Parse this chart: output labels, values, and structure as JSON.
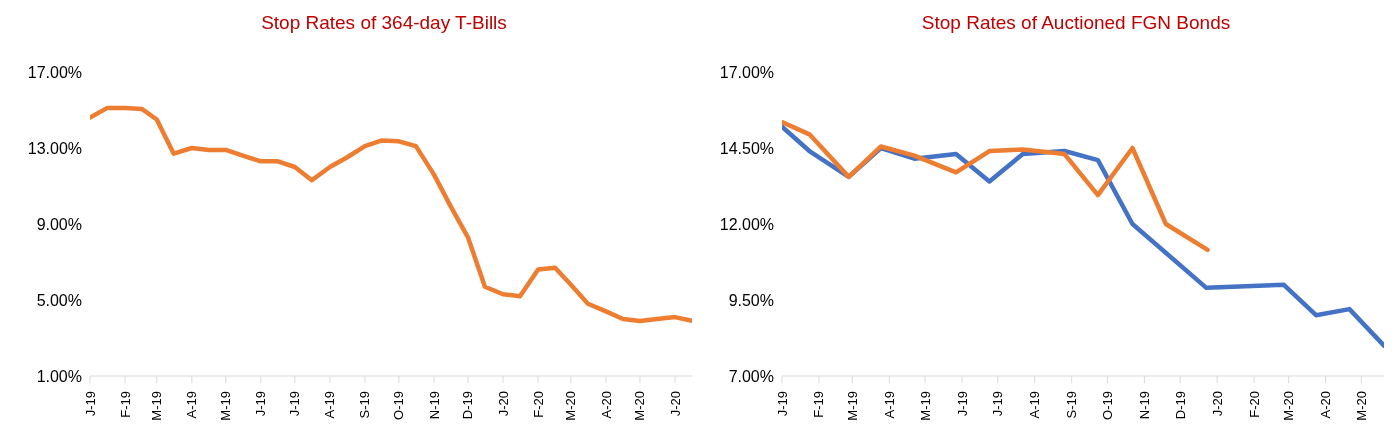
{
  "chart_data": [
    {
      "type": "line",
      "title": "Stop Rates of 364-day T-Bills",
      "color": "#ed7d31",
      "x": [
        "2019-01-01",
        "2019-01-16",
        "2019-02-01",
        "2019-02-16",
        "2019-03-01",
        "2019-03-16",
        "2019-04-01",
        "2019-04-16",
        "2019-05-01",
        "2019-05-16",
        "2019-06-01",
        "2019-06-16",
        "2019-07-01",
        "2019-07-16",
        "2019-08-01",
        "2019-08-16",
        "2019-09-01",
        "2019-09-16",
        "2019-10-01",
        "2019-10-16",
        "2019-11-01",
        "2019-11-16",
        "2019-12-01",
        "2019-12-16",
        "2020-01-01",
        "2020-01-16",
        "2020-02-01",
        "2020-02-16",
        "2020-03-01",
        "2020-03-16",
        "2020-04-01",
        "2020-04-16",
        "2020-05-01",
        "2020-05-16",
        "2020-06-01",
        "2020-06-16"
      ],
      "values": [
        14.6,
        15.1,
        15.1,
        15.05,
        14.5,
        12.7,
        13.0,
        12.9,
        12.9,
        12.6,
        12.3,
        12.3,
        12.0,
        11.3,
        12.0,
        12.5,
        13.1,
        13.4,
        13.35,
        13.1,
        11.6,
        9.9,
        8.3,
        5.7,
        5.3,
        5.2,
        6.6,
        6.7,
        5.8,
        4.8,
        4.4,
        4.0,
        3.9,
        4.0,
        4.1,
        3.9
      ],
      "xlim": [
        "2019-01-01",
        "2020-06-16"
      ],
      "xticks": [
        {
          "value": "2019-01-01",
          "label": "J-19"
        },
        {
          "value": "2019-02-01",
          "label": "F-19"
        },
        {
          "value": "2019-03-01",
          "label": "M-19"
        },
        {
          "value": "2019-04-01",
          "label": "A-19"
        },
        {
          "value": "2019-05-01",
          "label": "M-19"
        },
        {
          "value": "2019-06-01",
          "label": "J-19"
        },
        {
          "value": "2019-07-01",
          "label": "J-19"
        },
        {
          "value": "2019-08-01",
          "label": "A-19"
        },
        {
          "value": "2019-09-01",
          "label": "S-19"
        },
        {
          "value": "2019-10-01",
          "label": "O-19"
        },
        {
          "value": "2019-11-01",
          "label": "N-19"
        },
        {
          "value": "2019-12-01",
          "label": "D-19"
        },
        {
          "value": "2020-01-01",
          "label": "J-20"
        },
        {
          "value": "2020-02-01",
          "label": "F-20"
        },
        {
          "value": "2020-03-01",
          "label": "M-20"
        },
        {
          "value": "2020-04-01",
          "label": "A-20"
        },
        {
          "value": "2020-05-01",
          "label": "M-20"
        },
        {
          "value": "2020-06-01",
          "label": "J-20"
        }
      ],
      "ylim": [
        1,
        17
      ],
      "yticks": [
        {
          "value": 1,
          "label": "1.00%"
        },
        {
          "value": 5,
          "label": "5.00%"
        },
        {
          "value": 9,
          "label": "9.00%"
        },
        {
          "value": 13,
          "label": "13.00%"
        },
        {
          "value": 17,
          "label": "17.00%"
        }
      ]
    },
    {
      "type": "line",
      "title": "Stop Rates of Auctioned FGN Bonds",
      "series": [
        {
          "color": "#4472c4",
          "x": [
            "2019-01-01",
            "2019-01-24",
            "2019-02-26",
            "2019-03-25",
            "2019-04-22",
            "2019-05-27",
            "2019-06-24",
            "2019-07-22",
            "2019-08-26",
            "2019-09-23",
            "2019-10-22",
            "2019-12-23",
            "2020-02-26",
            "2020-03-24",
            "2020-04-21",
            "2020-05-20"
          ],
          "values": [
            15.2,
            14.4,
            13.55,
            14.5,
            14.15,
            14.3,
            13.4,
            14.3,
            14.4,
            14.1,
            12.0,
            9.9,
            10.0,
            9.0,
            9.2,
            8.0
          ]
        },
        {
          "color": "#ed7d31",
          "x": [
            "2019-01-01",
            "2019-01-24",
            "2019-02-26",
            "2019-03-25",
            "2019-04-22",
            "2019-05-27",
            "2019-06-24",
            "2019-07-22",
            "2019-08-26",
            "2019-09-23",
            "2019-10-22",
            "2019-11-19",
            "2019-12-24"
          ],
          "values": [
            15.35,
            14.95,
            13.55,
            14.55,
            14.25,
            13.7,
            14.4,
            14.45,
            14.3,
            12.95,
            14.5,
            12.0,
            11.15
          ]
        }
      ],
      "xlim": [
        "2019-01-01",
        "2020-05-20"
      ],
      "xticks": [
        {
          "value": "2019-01-01",
          "label": "J-19"
        },
        {
          "value": "2019-02-01",
          "label": "F-19"
        },
        {
          "value": "2019-03-01",
          "label": "M-19"
        },
        {
          "value": "2019-04-01",
          "label": "A-19"
        },
        {
          "value": "2019-05-01",
          "label": "M-19"
        },
        {
          "value": "2019-06-01",
          "label": "J-19"
        },
        {
          "value": "2019-07-01",
          "label": "J-19"
        },
        {
          "value": "2019-08-01",
          "label": "A-19"
        },
        {
          "value": "2019-09-01",
          "label": "S-19"
        },
        {
          "value": "2019-10-01",
          "label": "O-19"
        },
        {
          "value": "2019-11-01",
          "label": "N-19"
        },
        {
          "value": "2019-12-01",
          "label": "D-19"
        },
        {
          "value": "2020-01-01",
          "label": "J-20"
        },
        {
          "value": "2020-02-01",
          "label": "F-20"
        },
        {
          "value": "2020-03-01",
          "label": "M-20"
        },
        {
          "value": "2020-04-01",
          "label": "A-20"
        },
        {
          "value": "2020-05-01",
          "label": "M-20"
        }
      ],
      "ylim": [
        7,
        17
      ],
      "yticks": [
        {
          "value": 7,
          "label": "7.00%"
        },
        {
          "value": 9.5,
          "label": "9.50%"
        },
        {
          "value": 12,
          "label": "12.00%"
        },
        {
          "value": 14.5,
          "label": "14.50%"
        },
        {
          "value": 17,
          "label": "17.00%"
        }
      ]
    }
  ]
}
